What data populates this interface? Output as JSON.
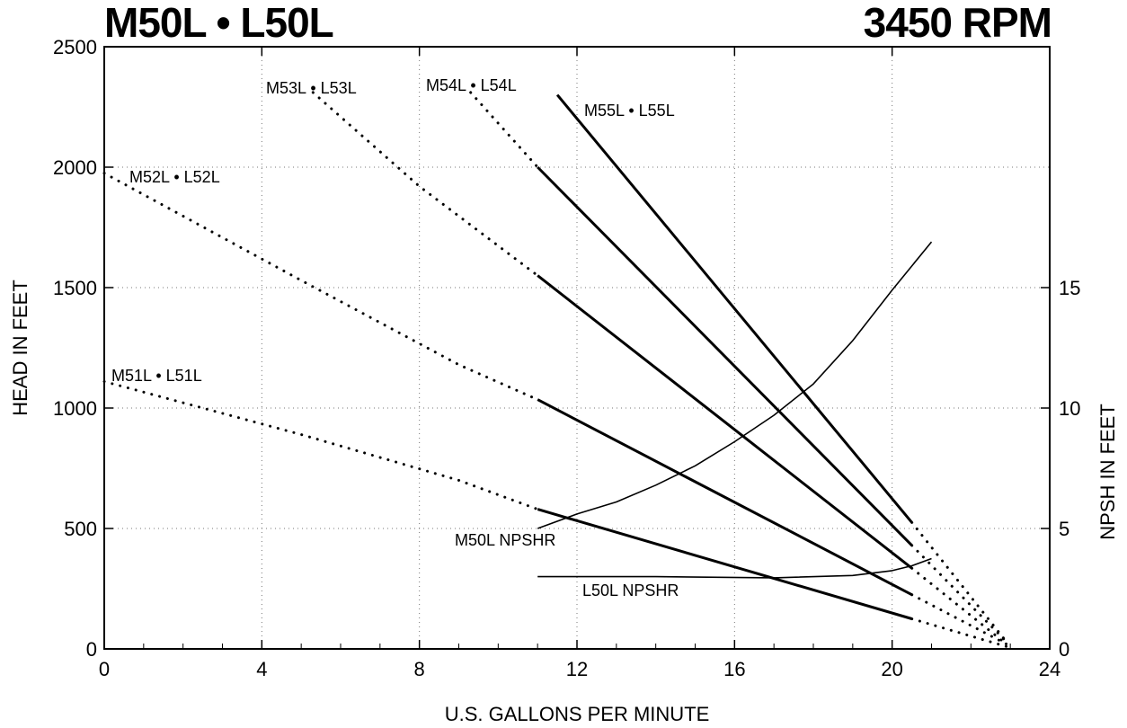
{
  "header": {
    "title_left": "M50L • L50L",
    "title_right": "3450 RPM"
  },
  "chart_data": {
    "type": "line",
    "xlabel": "U.S. GALLONS PER MINUTE",
    "ylabel": "HEAD IN FEET",
    "y2label": "NPSH IN FEET",
    "xlim": [
      0,
      24
    ],
    "ylim": [
      0,
      2500
    ],
    "y2lim": [
      0,
      25
    ],
    "x_ticks": [
      0,
      4,
      8,
      12,
      16,
      20,
      24
    ],
    "y_ticks": [
      0,
      500,
      1000,
      1500,
      2000,
      2500
    ],
    "y2_ticks": [
      0,
      5,
      10,
      15
    ],
    "grid": true,
    "series": [
      {
        "name": "M51L • L51L",
        "axis": "head",
        "dotted": [
          [
            0,
            1110
          ],
          [
            5,
            890
          ],
          [
            9,
            700
          ],
          [
            11,
            580
          ]
        ],
        "solid": [
          [
            11,
            580
          ],
          [
            20.5,
            125
          ]
        ],
        "tail": [
          [
            20.5,
            125
          ],
          [
            22.9,
            10
          ]
        ]
      },
      {
        "name": "M52L • L52L",
        "axis": "head",
        "dotted": [
          [
            0,
            1975
          ],
          [
            5,
            1530
          ],
          [
            9,
            1180
          ],
          [
            11,
            1035
          ]
        ],
        "solid": [
          [
            11,
            1035
          ],
          [
            20.5,
            225
          ]
        ],
        "tail": [
          [
            20.5,
            225
          ],
          [
            22.9,
            20
          ]
        ]
      },
      {
        "name": "M53L • L53L",
        "axis": "head",
        "dotted": [
          [
            5.3,
            2310
          ],
          [
            8,
            1920
          ],
          [
            11,
            1550
          ]
        ],
        "solid": [
          [
            11,
            1550
          ],
          [
            20.5,
            335
          ]
        ],
        "tail": [
          [
            20.5,
            335
          ],
          [
            22.9,
            20
          ]
        ]
      },
      {
        "name": "M54L • L54L",
        "axis": "head",
        "dotted": [
          [
            9.3,
            2310
          ],
          [
            11,
            2000
          ]
        ],
        "solid": [
          [
            11,
            2000
          ],
          [
            20.5,
            430
          ]
        ],
        "tail": [
          [
            20.5,
            430
          ],
          [
            22.9,
            30
          ]
        ]
      },
      {
        "name": "M55L • L55L",
        "axis": "head",
        "dotted": [],
        "solid": [
          [
            11.5,
            2300
          ],
          [
            20.5,
            525
          ]
        ],
        "tail": [
          [
            20.5,
            525
          ],
          [
            22.9,
            30
          ]
        ]
      },
      {
        "name": "M50L NPSHR",
        "axis": "npsh",
        "points": [
          [
            11,
            5
          ],
          [
            12,
            5.6
          ],
          [
            13,
            6.1
          ],
          [
            14,
            6.8
          ],
          [
            15,
            7.6
          ],
          [
            16,
            8.6
          ],
          [
            17,
            9.7
          ],
          [
            18,
            11.0
          ],
          [
            19,
            12.8
          ],
          [
            20,
            14.9
          ],
          [
            21,
            16.9
          ]
        ]
      },
      {
        "name": "L50L NPSHR",
        "axis": "npsh",
        "points": [
          [
            11,
            3.0
          ],
          [
            14,
            3.0
          ],
          [
            17,
            2.95
          ],
          [
            19,
            3.05
          ],
          [
            20,
            3.25
          ],
          [
            20.5,
            3.45
          ],
          [
            21,
            3.75
          ]
        ]
      }
    ]
  }
}
